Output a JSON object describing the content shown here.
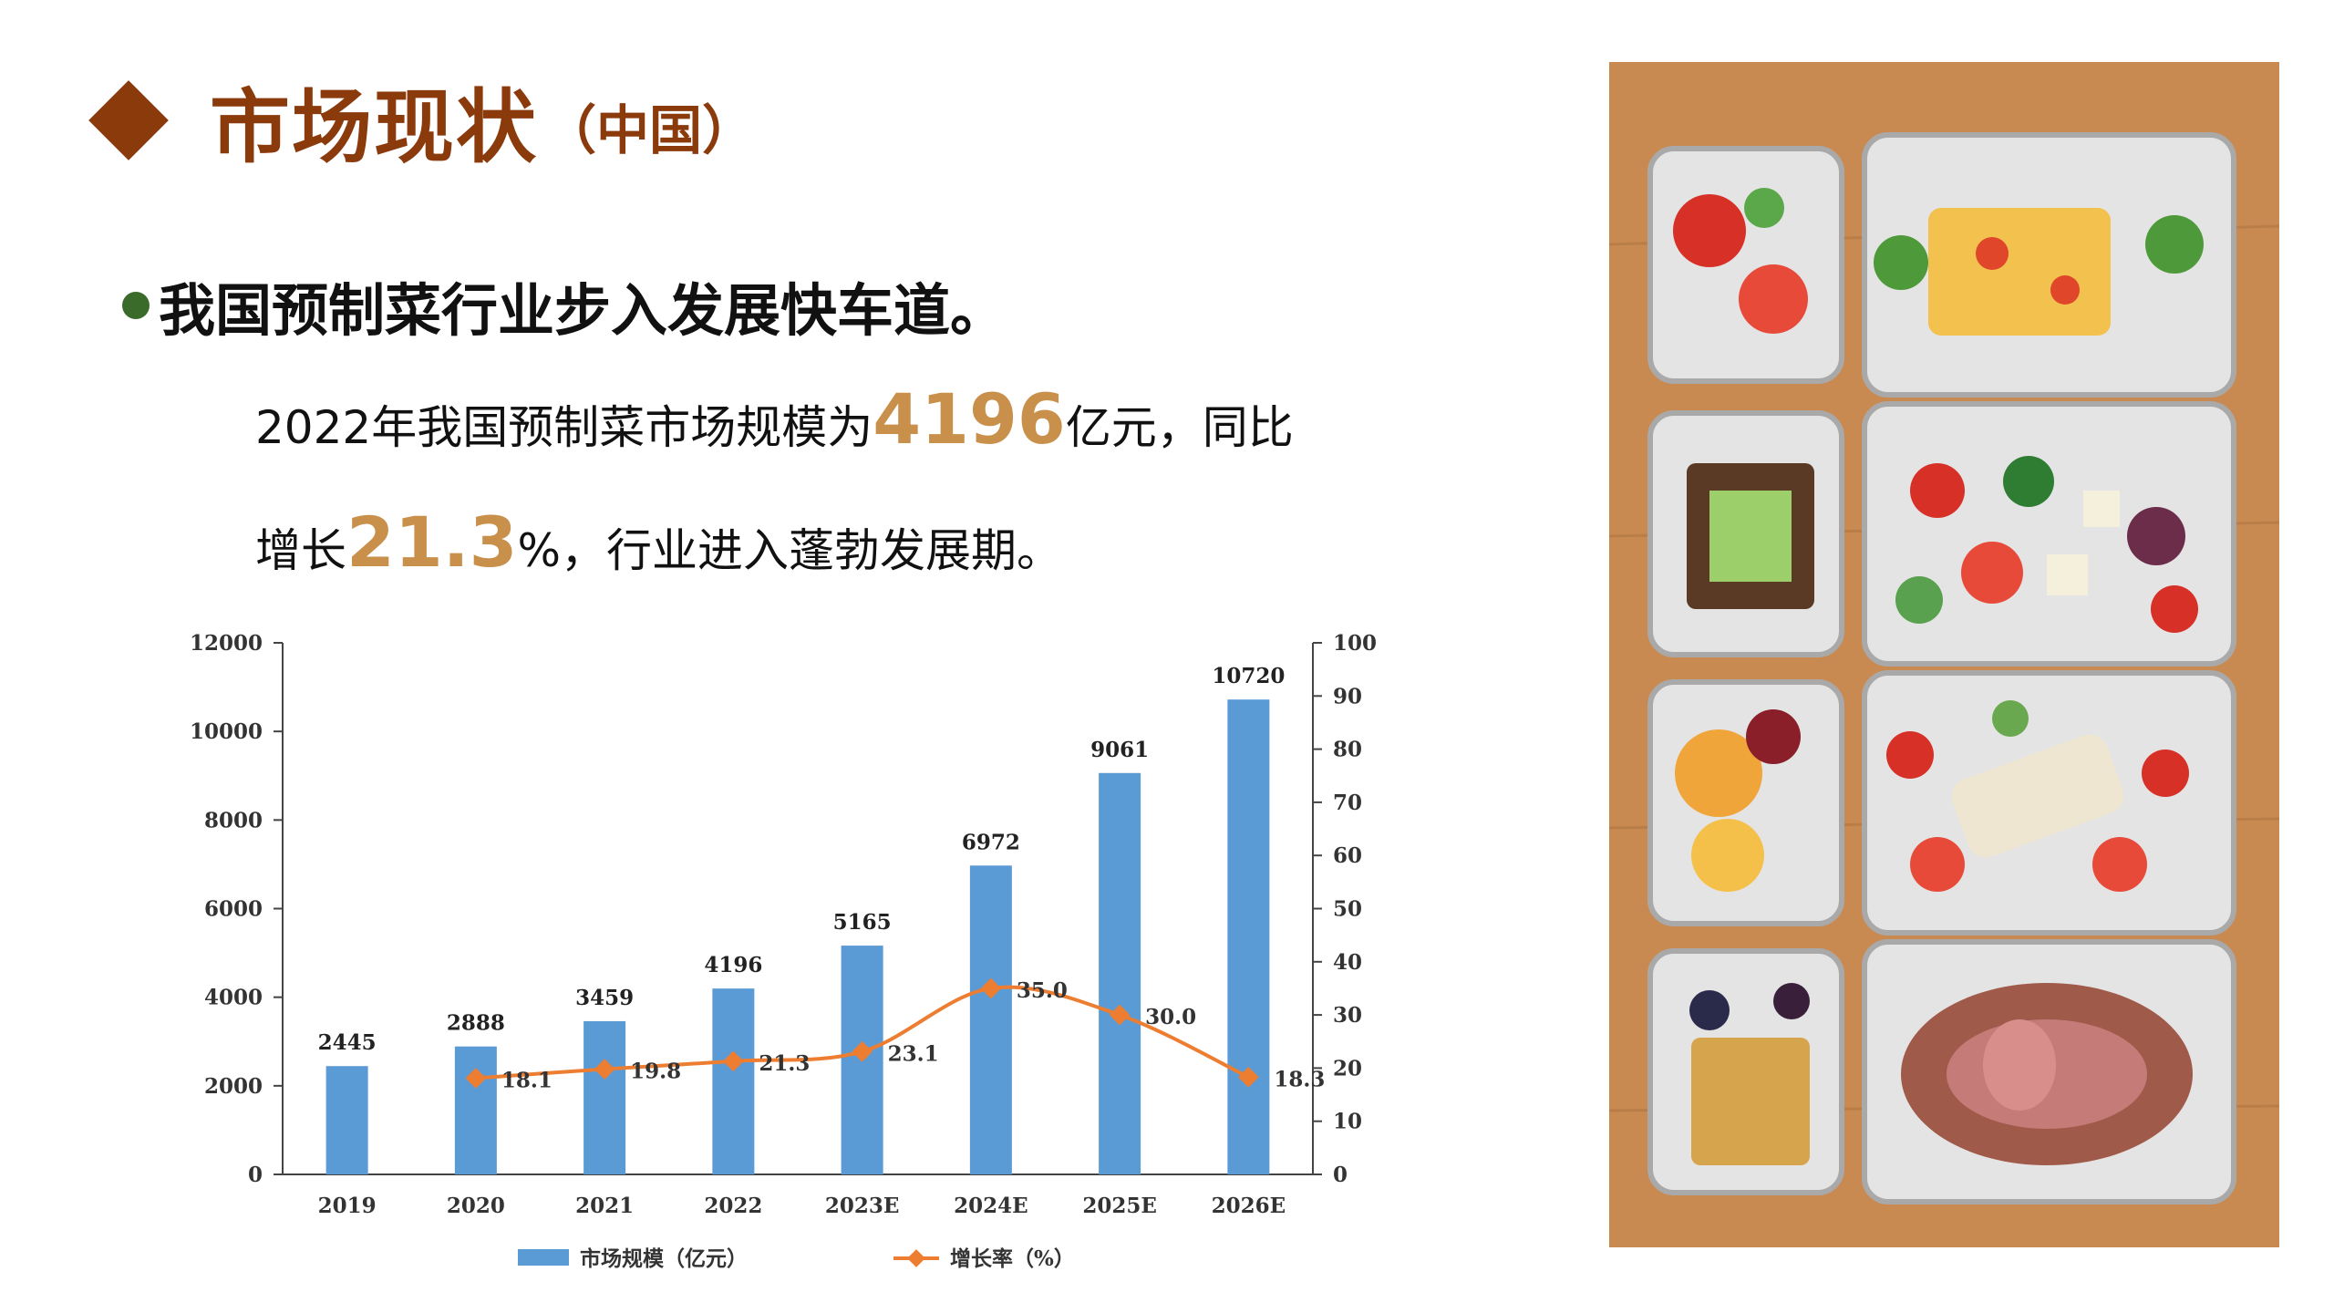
{
  "slide": {
    "title": "市场现状",
    "title_suffix": "（中国）",
    "bullet": "我国预制菜行业步入发展快车道。",
    "para_line1": {
      "pre": "2022年我国预制菜市场规模为",
      "num": "4196",
      "post": "亿元，同比"
    },
    "para_line2": {
      "pre": "增长",
      "num": "21.3",
      "post": "%，行业进入蓬勃发展期。"
    },
    "colors": {
      "title": "#8b3a0c",
      "bullet": "#3b6b2a",
      "highlight": "#c8904a",
      "bar": "#5b9bd5",
      "line": "#ed7d31"
    }
  },
  "chart_data": {
    "type": "bar",
    "categories": [
      "2019",
      "2020",
      "2021",
      "2022",
      "2023E",
      "2024E",
      "2025E",
      "2026E"
    ],
    "series": [
      {
        "name": "市场规模（亿元）",
        "type": "bar",
        "axis": "left",
        "values": [
          2445,
          2888,
          3459,
          4196,
          5165,
          6972,
          9061,
          10720
        ],
        "labels": [
          "2445",
          "2888",
          "3459",
          "4196",
          "5165",
          "6972",
          "9061",
          "10720"
        ]
      },
      {
        "name": "增长率（%）",
        "type": "line",
        "axis": "right",
        "values": [
          null,
          18.1,
          19.8,
          21.3,
          23.1,
          35.0,
          30.0,
          18.3
        ],
        "labels": [
          "",
          "18.1",
          "19.8",
          "21.3",
          "23.1",
          "35.0",
          "30.0",
          "18.3"
        ]
      }
    ],
    "ylim": [
      0,
      12000
    ],
    "y2lim": [
      0,
      100
    ],
    "yticks": [
      "0",
      "2000",
      "4000",
      "6000",
      "8000",
      "10000",
      "12000"
    ],
    "y2ticks": [
      "0",
      "10",
      "20",
      "30",
      "40",
      "50",
      "60",
      "70",
      "80",
      "90",
      "100"
    ],
    "legend": "bottom",
    "grid": false
  },
  "image": {
    "icon": "food-containers-photo"
  }
}
